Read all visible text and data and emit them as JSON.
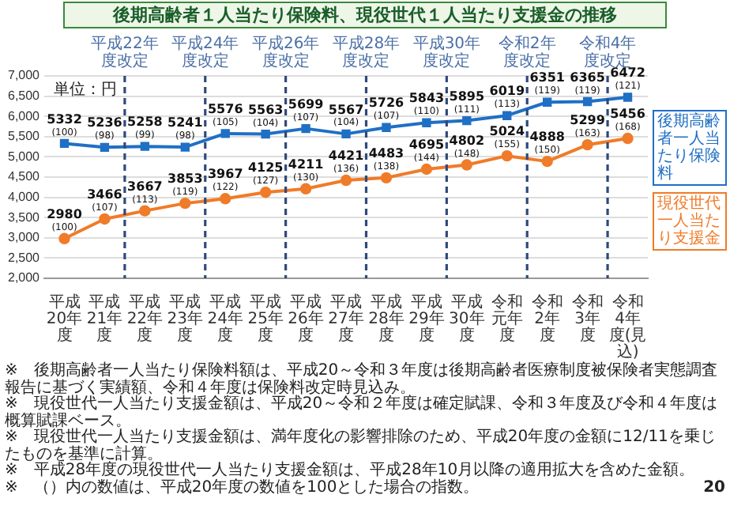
{
  "chart_data": {
    "type": "line",
    "title": "後期高齢者１人当たり保険料、現役世代１人当たり支援金の推移",
    "categories": [
      "平成20年度",
      "平成21年度",
      "平成22年度",
      "平成23年度",
      "平成24年度",
      "平成25年度",
      "平成26年度",
      "平成27年度",
      "平成28年度",
      "平成29年度",
      "平成30年度",
      "令和元年度",
      "令和2年度",
      "令和3年度",
      "令和4年度(見込)"
    ],
    "series": [
      {
        "name": "後期高齢者一人当たり保険料",
        "color": "#1f6fc5",
        "marker": "square",
        "values": [
          5332,
          5236,
          5258,
          5241,
          5576,
          5563,
          5699,
          5567,
          5726,
          5843,
          5895,
          6019,
          6351,
          6365,
          6472
        ],
        "value_labels": [
          "5332\n(100)",
          "5236\n(98)",
          "5258\n(99)",
          "5241\n(98)",
          "5576\n(105)",
          "5563\n(104)",
          "5699\n(107)",
          "5567\n(104)",
          "5726\n(107)",
          "5843\n(110)",
          "5895\n(111)",
          "6019\n(113)",
          "6351\n(119)",
          "6365\n(119)",
          "6472\n(121)"
        ]
      },
      {
        "name": "現役世代一人当たり支援金",
        "color": "#f07b28",
        "marker": "circle",
        "values": [
          2980,
          3466,
          3667,
          3853,
          3967,
          4125,
          4211,
          4421,
          4483,
          4695,
          4802,
          5024,
          4888,
          5299,
          5456
        ],
        "value_labels": [
          "2980\n(100)",
          "3466\n(107)",
          "3667\n(113)",
          "3853\n(119)",
          "3967\n(122)",
          "4125\n(127)",
          "4211\n(130)",
          "4421\n(136)",
          "4483\n(138)",
          "4695\n(144)",
          "4802\n(148)",
          "5024\n(155)",
          "4888\n(150)",
          "5299\n(163)",
          "5456\n(168)"
        ]
      }
    ],
    "ylim": [
      2000,
      7000
    ],
    "yticks": [
      {
        "value": 2000,
        "label": "2,000"
      },
      {
        "value": 2500,
        "label": "2,500"
      },
      {
        "value": 3000,
        "label": "3,000"
      },
      {
        "value": 3500,
        "label": "3,500"
      },
      {
        "value": 4000,
        "label": "4,000"
      },
      {
        "value": 4500,
        "label": "4,500"
      },
      {
        "value": 5000,
        "label": "5,000"
      },
      {
        "value": 5500,
        "label": "5,500"
      },
      {
        "value": 6000,
        "label": "6,000"
      },
      {
        "value": 6500,
        "label": "6,500"
      },
      {
        "value": 7000,
        "label": "7,000"
      }
    ],
    "grid": "y",
    "annotations": [
      "単位：円",
      "平成22年度改定",
      "平成24年度改定",
      "平成26年度改定",
      "平成28年度改定",
      "平成30年度改定",
      "令和2年度改定",
      "令和4年度改定",
      "※　後期高齢者一人当たり保険料額は、平成20～令和３年度は後期高齢者医療制度被保険者実態調査報告に基づく実績額、令和４年度は保険料改定時見込み。",
      "※　現役世代一人当たり支援金額は、平成20～令和２年度は確定賦課、令和３年度及び令和４年度は概算賦課ベース。",
      "※　現役世代一人当たり支援金額は、満年度化の影響排除のため、平成20年度の金額に12/11を乗じたものを基準に計算。",
      "※　平成28年度の現役世代一人当たり支援金額は、平成28年10月以降の適用拡大を含めた金額。",
      "※　（）内の数値は、平成20年度の数値を100とした場合の指数。",
      "20"
    ],
    "line_style": "solid"
  }
}
